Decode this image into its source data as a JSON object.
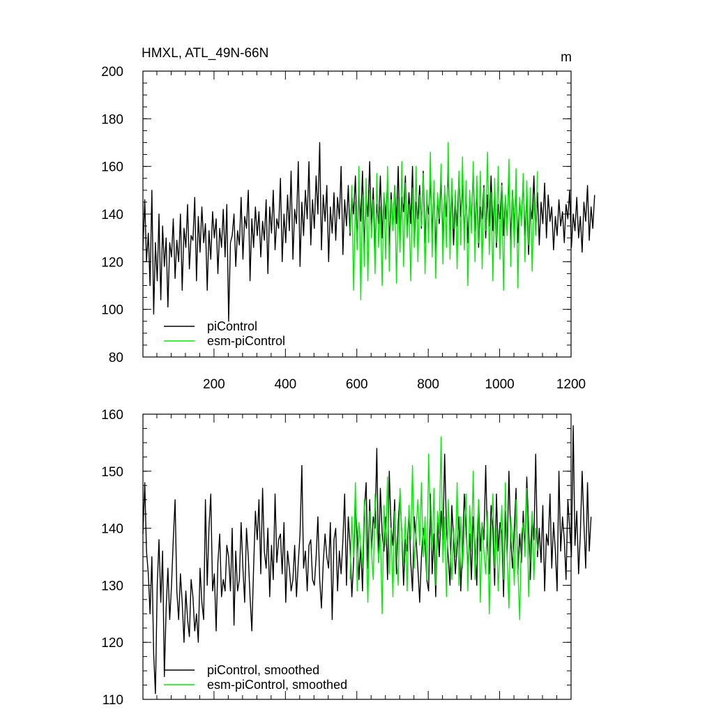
{
  "chart_data": [
    {
      "type": "line",
      "title": "HMXL, ATL_49N-66N",
      "units": "m",
      "xlim": [
        1,
        1200
      ],
      "ylim": [
        80,
        200
      ],
      "x_ticks": [
        200,
        400,
        600,
        800,
        1000,
        1200
      ],
      "x_tick_labels": [
        "200",
        "400",
        "600",
        "800",
        "1000",
        "1200"
      ],
      "y_ticks": [
        80,
        100,
        120,
        140,
        160,
        180,
        200
      ],
      "y_tick_labels": [
        "80",
        "100",
        "120",
        "140",
        "160",
        "180",
        "200"
      ],
      "legend_position": "bottom-left",
      "series": [
        {
          "name": "piControl",
          "color": "#000000",
          "x_start": 1,
          "x_step": 5,
          "values": [
            125,
            146,
            120,
            132,
            110,
            150,
            98,
            128,
            112,
            140,
            104,
            135,
            118,
            130,
            101,
            128,
            122,
            138,
            113,
            129,
            120,
            140,
            108,
            134,
            126,
            144,
            117,
            131,
            129,
            147,
            112,
            139,
            124,
            143,
            128,
            136,
            108,
            133,
            121,
            141,
            130,
            138,
            115,
            134,
            126,
            142,
            122,
            144,
            95,
            128,
            131,
            140,
            118,
            133,
            127,
            147,
            121,
            139,
            134,
            150,
            112,
            138,
            126,
            143,
            131,
            141,
            122,
            137,
            129,
            146,
            115,
            143,
            132,
            150,
            125,
            138,
            134,
            155,
            120,
            140,
            128,
            148,
            133,
            158,
            121,
            142,
            136,
            162,
            118,
            145,
            131,
            150,
            138,
            162,
            127,
            146,
            134,
            156,
            140,
            170,
            125,
            148,
            137,
            152,
            120,
            143,
            132,
            149,
            129,
            147,
            138,
            160,
            123,
            146,
            135,
            152,
            131,
            148,
            140,
            156,
            128,
            150,
            137,
            158,
            126,
            147,
            139,
            162,
            133,
            151,
            125,
            144,
            136,
            156,
            130,
            148,
            138,
            154,
            127,
            149,
            133,
            152,
            136,
            160,
            128,
            147,
            141,
            156,
            131,
            149,
            136,
            160,
            127,
            145,
            138,
            152,
            134,
            158,
            128,
            146,
            140,
            154,
            132,
            151,
            124,
            147,
            136,
            155,
            129,
            149,
            139,
            158,
            133,
            151,
            127,
            145,
            135,
            156,
            139,
            152,
            131,
            149,
            128,
            147,
            137,
            158,
            133,
            150,
            126,
            143,
            138,
            152,
            130,
            148,
            135,
            156,
            133,
            149,
            126,
            144,
            138,
            153,
            131,
            147,
            136,
            155,
            129,
            150,
            134,
            151,
            128,
            146,
            137,
            154,
            131,
            148,
            123,
            144,
            138,
            156,
            132,
            149,
            127,
            145,
            136,
            153,
            130,
            148,
            137,
            143,
            125,
            139,
            131,
            146,
            135,
            141,
            128,
            144,
            138,
            150,
            126,
            140,
            133,
            147,
            130,
            139,
            124,
            145,
            137,
            152,
            129,
            143,
            134,
            148
          ]
        },
        {
          "name": "esm-piControl",
          "color": "#00ee00",
          "x_start": 581,
          "x_step": 5,
          "values": [
            132,
            152,
            108,
            145,
            125,
            160,
            104,
            148,
            118,
            155,
            112,
            150,
            130,
            146,
            115,
            157,
            126,
            143,
            110,
            149,
            121,
            160,
            116,
            146,
            133,
            152,
            111,
            147,
            124,
            162,
            118,
            153,
            130,
            144,
            112,
            151,
            126,
            160,
            120,
            148,
            135,
            157,
            115,
            150,
            128,
            166,
            122,
            154,
            113,
            149,
            138,
            161,
            119,
            152,
            126,
            170,
            121,
            155,
            134,
            150,
            117,
            158,
            127,
            164,
            125,
            154,
            110,
            150,
            132,
            162,
            120,
            156,
            128,
            158,
            117,
            151,
            133,
            166,
            123,
            149,
            112,
            155,
            128,
            160,
            121,
            152,
            108,
            148,
            131,
            163,
            118,
            150,
            126,
            159,
            109,
            147,
            135,
            157,
            120,
            154,
            127,
            151,
            116,
            148,
            131,
            158
          ]
        }
      ]
    },
    {
      "type": "line",
      "xlim": [
        1,
        1200
      ],
      "ylim": [
        110,
        160
      ],
      "x_ticks": [
        200,
        400,
        600,
        800,
        1000,
        1200
      ],
      "x_tick_labels": [],
      "y_ticks": [
        110,
        120,
        130,
        140,
        150,
        160
      ],
      "y_tick_labels": [
        "110",
        "120",
        "130",
        "140",
        "150",
        "160"
      ],
      "legend_position": "bottom-left",
      "series": [
        {
          "name": "piControl, smoothed",
          "color": "#000000",
          "x_start": 1,
          "x_step": 5,
          "values": [
            139,
            148,
            136,
            132,
            125,
            135,
            118,
            111,
            130,
            138,
            127,
            136,
            114,
            126,
            133,
            124,
            130,
            138,
            145,
            129,
            124,
            132,
            127,
            120,
            129,
            124,
            121,
            131,
            128,
            122,
            125,
            120,
            133,
            127,
            124,
            145,
            130,
            140,
            146,
            129,
            132,
            122,
            134,
            139,
            128,
            131,
            129,
            137,
            135,
            129,
            140,
            123,
            136,
            129,
            131,
            141,
            133,
            127,
            140,
            135,
            128,
            122,
            133,
            143,
            138,
            145,
            132,
            147,
            136,
            133,
            140,
            128,
            137,
            131,
            146,
            134,
            138,
            139,
            132,
            141,
            127,
            136,
            133,
            129,
            131,
            137,
            128,
            134,
            139,
            151,
            133,
            136,
            129,
            137,
            138,
            131,
            130,
            135,
            142,
            131,
            126,
            134,
            139,
            135,
            133,
            141,
            124,
            138,
            140,
            129,
            136,
            132,
            138,
            146,
            130,
            142,
            137,
            128,
            134,
            144,
            139,
            131,
            137,
            129,
            143,
            148,
            133,
            145,
            136,
            142,
            140,
            154,
            134,
            147,
            139,
            136,
            142,
            131,
            150,
            140,
            137,
            145,
            132,
            141,
            146,
            139,
            130,
            138,
            136,
            143,
            134,
            129,
            142,
            138,
            133,
            127,
            135,
            140,
            137,
            131,
            129,
            146,
            132,
            139,
            128,
            141,
            135,
            143,
            138,
            153,
            140,
            135,
            130,
            144,
            138,
            132,
            137,
            142,
            129,
            136,
            146,
            140,
            133,
            139,
            131,
            142,
            137,
            130,
            145,
            136,
            141,
            138,
            151,
            137,
            132,
            144,
            140,
            130,
            146,
            136,
            141,
            139,
            128,
            143,
            135,
            150,
            138,
            133,
            140,
            147,
            132,
            139,
            134,
            143,
            136,
            149,
            140,
            131,
            142,
            138,
            153,
            135,
            140,
            134,
            144,
            129,
            139,
            137,
            146,
            133,
            141,
            136,
            129,
            150,
            136,
            142,
            138,
            131,
            145,
            140,
            135,
            158,
            137,
            143,
            132,
            139,
            150,
            141,
            133,
            148,
            136,
            142
          ]
        },
        {
          "name": "esm-piControl, smoothed",
          "color": "#00ee00",
          "x_start": 581,
          "x_step": 5,
          "values": [
            131,
            142,
            135,
            148,
            129,
            141,
            137,
            133,
            145,
            138,
            127,
            143,
            136,
            131,
            146,
            140,
            134,
            139,
            125,
            144,
            137,
            149,
            132,
            140,
            128,
            143,
            136,
            130,
            147,
            139,
            134,
            142,
            129,
            144,
            138,
            151,
            133,
            140,
            145,
            137,
            148,
            135,
            142,
            131,
            153,
            140,
            136,
            147,
            130,
            143,
            139,
            156,
            134,
            142,
            128,
            145,
            137,
            131,
            140,
            135,
            148,
            130,
            142,
            133,
            139,
            146,
            129,
            144,
            136,
            150,
            131,
            138,
            145,
            127,
            141,
            136,
            132,
            143,
            125,
            139,
            146,
            133,
            140,
            129,
            137,
            144,
            131,
            148,
            135,
            126,
            142,
            138,
            130,
            145,
            133,
            124,
            139,
            141,
            135,
            147,
            128,
            137,
            143,
            131,
            140,
            136
          ]
        }
      ]
    }
  ]
}
